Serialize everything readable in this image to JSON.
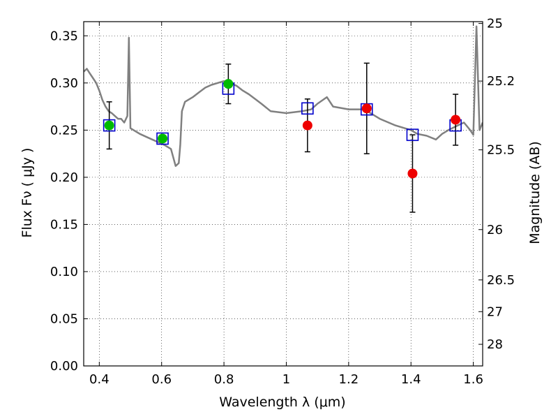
{
  "chart_data": {
    "type": "scatter",
    "title": "",
    "xlabel": "Wavelength  λ (μm)",
    "ylabel": "Flux  Fν  ( μJy )",
    "ylabel_right": "Magnitude (AB)",
    "xlim": [
      0.35,
      1.63
    ],
    "ylim": [
      0.0,
      0.365
    ],
    "grid": true,
    "x_ticks": [
      {
        "v": 0.4,
        "label": "0.4"
      },
      {
        "v": 0.6,
        "label": "0.6"
      },
      {
        "v": 0.8,
        "label": "0.8"
      },
      {
        "v": 1.0,
        "label": "1"
      },
      {
        "v": 1.2,
        "label": "1.2"
      },
      {
        "v": 1.4,
        "label": "1.4"
      },
      {
        "v": 1.6,
        "label": "1.6"
      }
    ],
    "y_ticks": [
      {
        "v": 0.0,
        "label": "0.00"
      },
      {
        "v": 0.05,
        "label": "0.05"
      },
      {
        "v": 0.1,
        "label": "0.10"
      },
      {
        "v": 0.15,
        "label": "0.15"
      },
      {
        "v": 0.2,
        "label": "0.20"
      },
      {
        "v": 0.25,
        "label": "0.25"
      },
      {
        "v": 0.3,
        "label": "0.30"
      },
      {
        "v": 0.35,
        "label": "0.35"
      }
    ],
    "mag_ticks": [
      {
        "mag": 25,
        "label": "25"
      },
      {
        "mag": 25.2,
        "label": "25.2"
      },
      {
        "mag": 25.5,
        "label": "25.5"
      },
      {
        "mag": 26,
        "label": "26"
      },
      {
        "mag": 26.5,
        "label": "26.5"
      },
      {
        "mag": 27,
        "label": "27"
      },
      {
        "mag": 28,
        "label": "28"
      }
    ],
    "series": [
      {
        "kind": "model-spectrum",
        "color": "#808080",
        "x": [
          0.35,
          0.36,
          0.37,
          0.38,
          0.39,
          0.4,
          0.41,
          0.42,
          0.43,
          0.44,
          0.45,
          0.46,
          0.47,
          0.48,
          0.49,
          0.495,
          0.5,
          0.51,
          0.52,
          0.53,
          0.55,
          0.57,
          0.59,
          0.61,
          0.63,
          0.645,
          0.655,
          0.66,
          0.665,
          0.675,
          0.7,
          0.72,
          0.74,
          0.76,
          0.78,
          0.8,
          0.82,
          0.84,
          0.86,
          0.88,
          0.9,
          0.92,
          0.95,
          1.0,
          1.05,
          1.08,
          1.1,
          1.13,
          1.15,
          1.2,
          1.25,
          1.3,
          1.35,
          1.4,
          1.42,
          1.45,
          1.48,
          1.5,
          1.52,
          1.55,
          1.57,
          1.59,
          1.6,
          1.61,
          1.62,
          1.63
        ],
        "y": [
          0.312,
          0.315,
          0.31,
          0.305,
          0.3,
          0.292,
          0.282,
          0.275,
          0.27,
          0.268,
          0.265,
          0.262,
          0.262,
          0.258,
          0.265,
          0.348,
          0.252,
          0.25,
          0.248,
          0.246,
          0.243,
          0.24,
          0.237,
          0.234,
          0.23,
          0.212,
          0.215,
          0.235,
          0.27,
          0.28,
          0.285,
          0.29,
          0.295,
          0.298,
          0.3,
          0.302,
          0.3,
          0.297,
          0.292,
          0.288,
          0.283,
          0.278,
          0.27,
          0.268,
          0.27,
          0.272,
          0.278,
          0.285,
          0.275,
          0.272,
          0.272,
          0.262,
          0.255,
          0.25,
          0.246,
          0.244,
          0.24,
          0.246,
          0.25,
          0.255,
          0.258,
          0.25,
          0.245,
          0.36,
          0.25,
          0.258
        ]
      },
      {
        "kind": "model-photometry",
        "marker": "open-square",
        "color": "#0000cc",
        "x": [
          0.432,
          0.603,
          0.814,
          1.068,
          1.258,
          1.405,
          1.543
        ],
        "y": [
          0.255,
          0.241,
          0.294,
          0.273,
          0.272,
          0.245,
          0.255
        ]
      },
      {
        "kind": "optical-photometry",
        "marker": "filled-circle",
        "color": "#00bb00",
        "x": [
          0.432,
          0.603,
          0.814
        ],
        "y": [
          0.255,
          0.241,
          0.299
        ],
        "yerr": [
          0.025,
          0.002,
          0.021
        ]
      },
      {
        "kind": "nir-photometry",
        "marker": "filled-circle",
        "color": "#ee0000",
        "x": [
          1.068,
          1.258,
          1.405,
          1.543
        ],
        "y": [
          0.255,
          0.273,
          0.204,
          0.261
        ],
        "yerr": [
          0.028,
          0.048,
          0.041,
          0.027
        ]
      }
    ]
  }
}
